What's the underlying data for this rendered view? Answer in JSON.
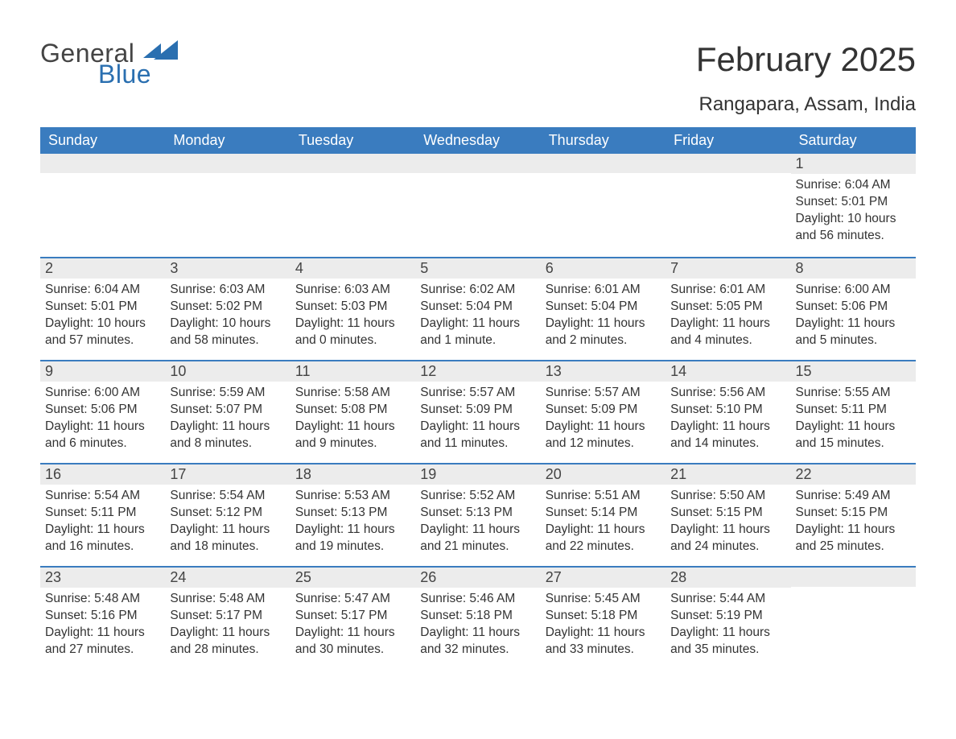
{
  "logo": {
    "text1": "General",
    "text2": "Blue"
  },
  "title": "February 2025",
  "location": "Rangapara, Assam, India",
  "colors": {
    "header_bg": "#3a7cbf",
    "header_text": "#ffffff",
    "daynum_bg": "#ececec",
    "row_border": "#3a7cbf",
    "body_text": "#333333",
    "logo_blue": "#2a6fb0",
    "logo_gray": "#444444",
    "page_bg": "#ffffff"
  },
  "weekdays": [
    "Sunday",
    "Monday",
    "Tuesday",
    "Wednesday",
    "Thursday",
    "Friday",
    "Saturday"
  ],
  "weeks": [
    [
      null,
      null,
      null,
      null,
      null,
      null,
      {
        "n": "1",
        "sunrise": "Sunrise: 6:04 AM",
        "sunset": "Sunset: 5:01 PM",
        "daylight": "Daylight: 10 hours and 56 minutes."
      }
    ],
    [
      {
        "n": "2",
        "sunrise": "Sunrise: 6:04 AM",
        "sunset": "Sunset: 5:01 PM",
        "daylight": "Daylight: 10 hours and 57 minutes."
      },
      {
        "n": "3",
        "sunrise": "Sunrise: 6:03 AM",
        "sunset": "Sunset: 5:02 PM",
        "daylight": "Daylight: 10 hours and 58 minutes."
      },
      {
        "n": "4",
        "sunrise": "Sunrise: 6:03 AM",
        "sunset": "Sunset: 5:03 PM",
        "daylight": "Daylight: 11 hours and 0 minutes."
      },
      {
        "n": "5",
        "sunrise": "Sunrise: 6:02 AM",
        "sunset": "Sunset: 5:04 PM",
        "daylight": "Daylight: 11 hours and 1 minute."
      },
      {
        "n": "6",
        "sunrise": "Sunrise: 6:01 AM",
        "sunset": "Sunset: 5:04 PM",
        "daylight": "Daylight: 11 hours and 2 minutes."
      },
      {
        "n": "7",
        "sunrise": "Sunrise: 6:01 AM",
        "sunset": "Sunset: 5:05 PM",
        "daylight": "Daylight: 11 hours and 4 minutes."
      },
      {
        "n": "8",
        "sunrise": "Sunrise: 6:00 AM",
        "sunset": "Sunset: 5:06 PM",
        "daylight": "Daylight: 11 hours and 5 minutes."
      }
    ],
    [
      {
        "n": "9",
        "sunrise": "Sunrise: 6:00 AM",
        "sunset": "Sunset: 5:06 PM",
        "daylight": "Daylight: 11 hours and 6 minutes."
      },
      {
        "n": "10",
        "sunrise": "Sunrise: 5:59 AM",
        "sunset": "Sunset: 5:07 PM",
        "daylight": "Daylight: 11 hours and 8 minutes."
      },
      {
        "n": "11",
        "sunrise": "Sunrise: 5:58 AM",
        "sunset": "Sunset: 5:08 PM",
        "daylight": "Daylight: 11 hours and 9 minutes."
      },
      {
        "n": "12",
        "sunrise": "Sunrise: 5:57 AM",
        "sunset": "Sunset: 5:09 PM",
        "daylight": "Daylight: 11 hours and 11 minutes."
      },
      {
        "n": "13",
        "sunrise": "Sunrise: 5:57 AM",
        "sunset": "Sunset: 5:09 PM",
        "daylight": "Daylight: 11 hours and 12 minutes."
      },
      {
        "n": "14",
        "sunrise": "Sunrise: 5:56 AM",
        "sunset": "Sunset: 5:10 PM",
        "daylight": "Daylight: 11 hours and 14 minutes."
      },
      {
        "n": "15",
        "sunrise": "Sunrise: 5:55 AM",
        "sunset": "Sunset: 5:11 PM",
        "daylight": "Daylight: 11 hours and 15 minutes."
      }
    ],
    [
      {
        "n": "16",
        "sunrise": "Sunrise: 5:54 AM",
        "sunset": "Sunset: 5:11 PM",
        "daylight": "Daylight: 11 hours and 16 minutes."
      },
      {
        "n": "17",
        "sunrise": "Sunrise: 5:54 AM",
        "sunset": "Sunset: 5:12 PM",
        "daylight": "Daylight: 11 hours and 18 minutes."
      },
      {
        "n": "18",
        "sunrise": "Sunrise: 5:53 AM",
        "sunset": "Sunset: 5:13 PM",
        "daylight": "Daylight: 11 hours and 19 minutes."
      },
      {
        "n": "19",
        "sunrise": "Sunrise: 5:52 AM",
        "sunset": "Sunset: 5:13 PM",
        "daylight": "Daylight: 11 hours and 21 minutes."
      },
      {
        "n": "20",
        "sunrise": "Sunrise: 5:51 AM",
        "sunset": "Sunset: 5:14 PM",
        "daylight": "Daylight: 11 hours and 22 minutes."
      },
      {
        "n": "21",
        "sunrise": "Sunrise: 5:50 AM",
        "sunset": "Sunset: 5:15 PM",
        "daylight": "Daylight: 11 hours and 24 minutes."
      },
      {
        "n": "22",
        "sunrise": "Sunrise: 5:49 AM",
        "sunset": "Sunset: 5:15 PM",
        "daylight": "Daylight: 11 hours and 25 minutes."
      }
    ],
    [
      {
        "n": "23",
        "sunrise": "Sunrise: 5:48 AM",
        "sunset": "Sunset: 5:16 PM",
        "daylight": "Daylight: 11 hours and 27 minutes."
      },
      {
        "n": "24",
        "sunrise": "Sunrise: 5:48 AM",
        "sunset": "Sunset: 5:17 PM",
        "daylight": "Daylight: 11 hours and 28 minutes."
      },
      {
        "n": "25",
        "sunrise": "Sunrise: 5:47 AM",
        "sunset": "Sunset: 5:17 PM",
        "daylight": "Daylight: 11 hours and 30 minutes."
      },
      {
        "n": "26",
        "sunrise": "Sunrise: 5:46 AM",
        "sunset": "Sunset: 5:18 PM",
        "daylight": "Daylight: 11 hours and 32 minutes."
      },
      {
        "n": "27",
        "sunrise": "Sunrise: 5:45 AM",
        "sunset": "Sunset: 5:18 PM",
        "daylight": "Daylight: 11 hours and 33 minutes."
      },
      {
        "n": "28",
        "sunrise": "Sunrise: 5:44 AM",
        "sunset": "Sunset: 5:19 PM",
        "daylight": "Daylight: 11 hours and 35 minutes."
      },
      null
    ]
  ]
}
